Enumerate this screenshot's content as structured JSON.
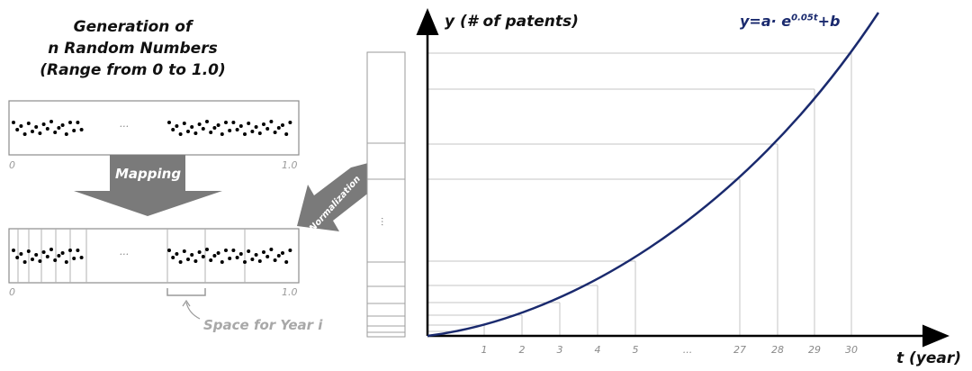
{
  "title": {
    "line1": "Generation of",
    "line2": "n Random Numbers",
    "line3": "(Range from 0 to 1.0)"
  },
  "top_bar": {
    "start_label": "0",
    "end_label": "1.0",
    "ellipsis": "..."
  },
  "mapping_arrow": {
    "label": "Mapping"
  },
  "bottom_bar": {
    "start_label": "0",
    "end_label": "1.0",
    "ellipsis": "..."
  },
  "space_annotation": {
    "label": "Space for Year i"
  },
  "normalization_arrow": {
    "label": "Normalization"
  },
  "stack": {
    "ellipsis": "..."
  },
  "chart": {
    "y_axis_label": "y (# of patents)",
    "x_axis_label": "t (year)",
    "formula_main": "y=a· e",
    "formula_exponent": "0.05t",
    "formula_tail": "+b",
    "x_ticks": [
      "1",
      "2",
      "3",
      "4",
      "5",
      "...",
      "27",
      "28",
      "29",
      "30"
    ],
    "curve_color": "#1a2a6e"
  }
}
